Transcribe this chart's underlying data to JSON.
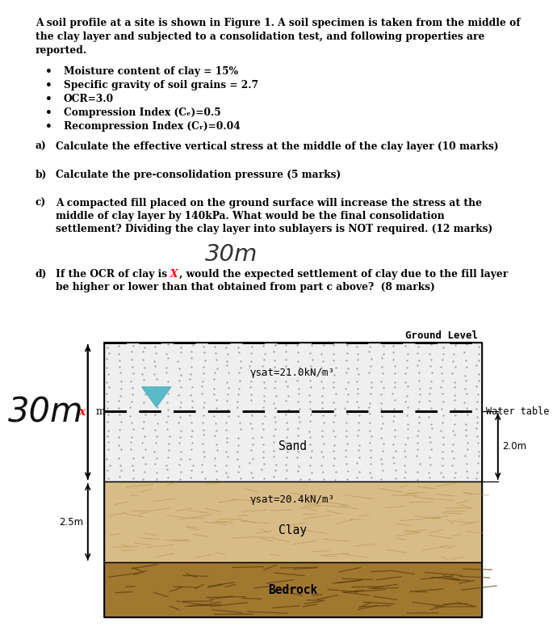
{
  "bg_color": "#ffffff",
  "diagram": {
    "ground_level_label": "Ground Level",
    "water_table_label": "Water table",
    "sand_label": "Sand",
    "clay_label": "Clay",
    "bedrock_label": "Bedrock",
    "sand_gamma": "γsat=21.0kN/m³",
    "clay_gamma": "γsat=20.4kN/m³",
    "dim_2m": "2.0m",
    "dim_25m": "2.5m",
    "sand_color": "#efefef",
    "clay_color": "#d8bc87",
    "bedrock_color": "#a07830",
    "water_table_arrow_color": "#4ab5c4"
  }
}
